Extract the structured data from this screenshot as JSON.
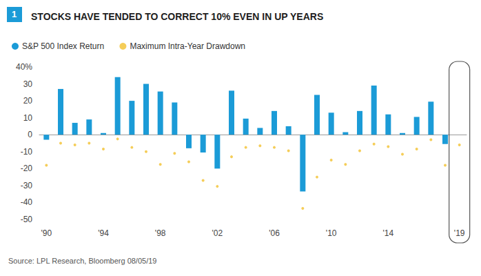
{
  "chart_data": {
    "type": "bar",
    "title": "STOCKS HAVE TENDED TO CORRECT 10% EVEN IN UP YEARS",
    "figure_number": "1",
    "source": "Source: LPL Research, Bloomberg 08/05/19",
    "categories": [
      "'90",
      null,
      null,
      null,
      "'94",
      null,
      null,
      null,
      "'98",
      null,
      null,
      null,
      "'02",
      null,
      null,
      null,
      "'06",
      null,
      null,
      null,
      "'10",
      null,
      null,
      null,
      "'14",
      null,
      null,
      null,
      null,
      "'19"
    ],
    "series": [
      {
        "name": "S&P 500 Index Return",
        "type": "bar",
        "color": "#1b9bd7",
        "values": [
          -3,
          27,
          7,
          9,
          1,
          34,
          20,
          30,
          25.5,
          19,
          -8,
          -10.5,
          -20,
          26,
          9.5,
          4,
          14,
          5,
          -33.5,
          23.5,
          13,
          1.5,
          14,
          29,
          12,
          1,
          10.5,
          19.5,
          -5.5,
          null
        ]
      },
      {
        "name": "Maximum Intra-Year Drawdown",
        "type": "scatter",
        "color": "#f2c12e",
        "marker": "circle",
        "values": [
          -18,
          -5,
          -6,
          -5,
          -8.5,
          -2.5,
          -7.5,
          -10,
          -17.5,
          -11,
          -16,
          -27,
          -30.5,
          -13,
          -7.5,
          -6.5,
          -7.5,
          -9.5,
          -43.5,
          -25,
          -15,
          -17.5,
          -9.5,
          -5.5,
          -7,
          -11.5,
          -8.5,
          -3,
          -18,
          -6
        ]
      }
    ],
    "ylim": [
      -50,
      40
    ],
    "yticks": [
      -50,
      -40,
      -30,
      -20,
      -10,
      0,
      10,
      20,
      30,
      {
        "value": 40,
        "label": "40%"
      }
    ],
    "grid": false,
    "legend": "top-left"
  }
}
